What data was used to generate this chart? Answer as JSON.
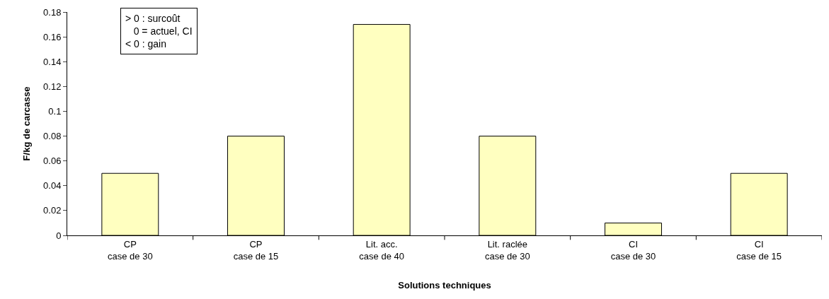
{
  "chart_data": {
    "type": "bar",
    "xlabel": "Solutions techniques",
    "ylabel": "F/kg de carcasse",
    "categories": [
      "CP\ncase de 30",
      "CP\ncase de 15",
      "Lit. acc.\ncase de 40",
      "Lit. raclée\ncase de 30",
      "CI\ncase de 30",
      "CI\ncase de 15"
    ],
    "values": [
      0.05,
      0.08,
      0.17,
      0.08,
      0.01,
      0.05
    ],
    "color": "#ffffc0",
    "ylim": [
      0,
      0.18
    ],
    "yticks": [
      0,
      0.02,
      0.04,
      0.06,
      0.08,
      0.1,
      0.12,
      0.14,
      0.16,
      0.18
    ],
    "legend": false,
    "annotations": [
      "> 0 : surcoût\n   0 = actuel, CI\n< 0 : gain"
    ]
  }
}
